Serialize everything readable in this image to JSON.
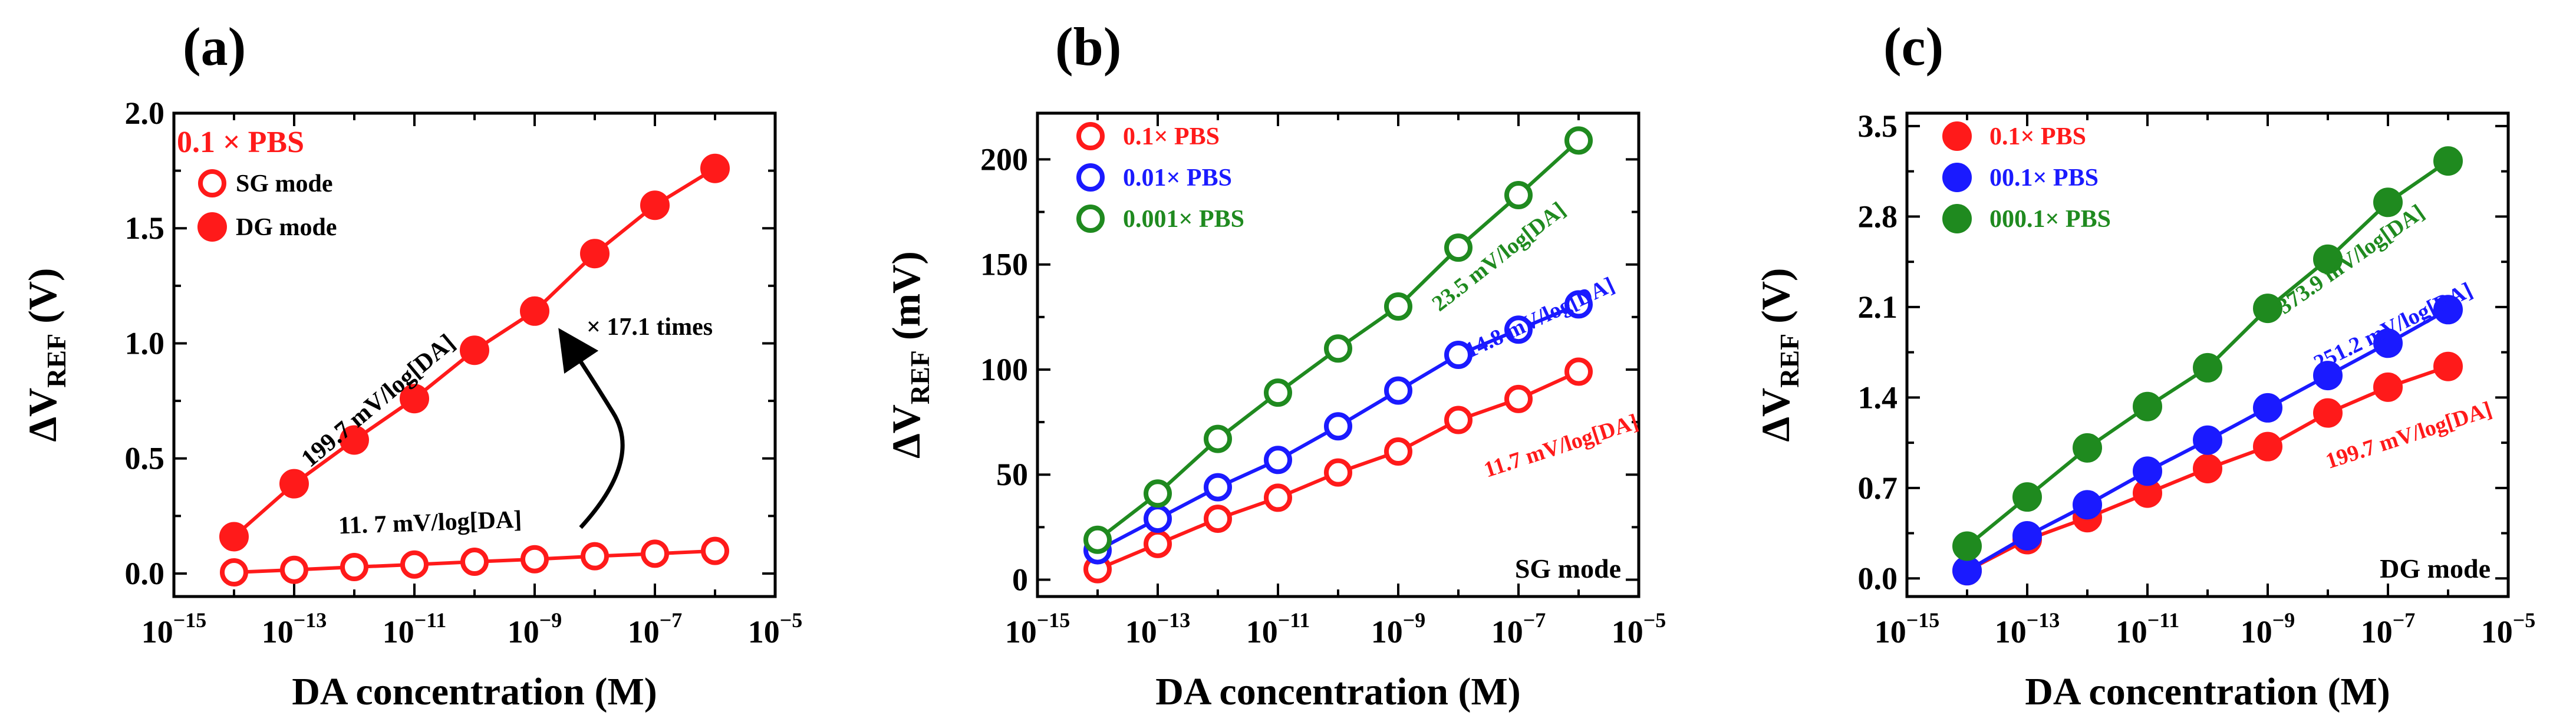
{
  "colors": {
    "red": "#ff1a1a",
    "blue": "#1a1aff",
    "green": "#1f8a1f",
    "axis": "#000000"
  },
  "chart_data": [
    {
      "type": "scatter",
      "panel_label": "(a)",
      "xlabel": "DA concentration (M)",
      "ylabel_main": "ΔV",
      "ylabel_sub": "REF",
      "ylabel_unit": " (V)",
      "xscale": "log",
      "xlim_exp": [
        -15,
        -5
      ],
      "xtick_exps": [
        -15,
        -13,
        -11,
        -9,
        -7,
        -5
      ],
      "ylim": [
        -0.1,
        2.0
      ],
      "yticks": [
        0.0,
        0.5,
        1.0,
        1.5,
        2.0
      ],
      "ytick_labels": [
        "0.0",
        "0.5",
        "1.0",
        "1.5",
        "2.0"
      ],
      "title_text": "0.1 × PBS",
      "legend": [
        {
          "label": "SG mode",
          "color": "#ff1a1a",
          "filled": false
        },
        {
          "label": "DG mode",
          "color": "#ff1a1a",
          "filled": true
        }
      ],
      "x_exp": [
        -14,
        -13,
        -12,
        -11,
        -10,
        -9,
        -8,
        -7,
        -6
      ],
      "series": [
        {
          "name": "SG mode",
          "color": "#ff1a1a",
          "filled": false,
          "values": [
            0.005,
            0.016,
            0.028,
            0.039,
            0.051,
            0.062,
            0.075,
            0.086,
            0.098
          ]
        },
        {
          "name": "DG mode",
          "color": "#ff1a1a",
          "filled": true,
          "values": [
            0.16,
            0.39,
            0.58,
            0.76,
            0.97,
            1.14,
            1.39,
            1.6,
            1.76
          ]
        }
      ],
      "annotations": [
        {
          "text": "199.7 mV/log[DA]",
          "color": "#000000"
        },
        {
          "text": "11. 7 mV/log[DA]",
          "color": "#000000"
        },
        {
          "text": "× 17.1 times",
          "color": "#000000"
        }
      ]
    },
    {
      "type": "scatter",
      "panel_label": "(b)",
      "xlabel": "DA concentration (M)",
      "ylabel_main": "ΔV",
      "ylabel_sub": "REF",
      "ylabel_unit": " (mV)",
      "xscale": "log",
      "xlim_exp": [
        -15,
        -5
      ],
      "xtick_exps": [
        -15,
        -13,
        -11,
        -9,
        -7,
        -5
      ],
      "ylim": [
        -8,
        222
      ],
      "yticks": [
        0,
        50,
        100,
        150,
        200
      ],
      "ytick_labels": [
        "0",
        "50",
        "100",
        "150",
        "200"
      ],
      "mode_label": "SG mode",
      "legend": [
        {
          "label": "0.1× PBS",
          "color": "#ff1a1a",
          "filled": false
        },
        {
          "label": "0.01× PBS",
          "color": "#1a1aff",
          "filled": false
        },
        {
          "label": "0.001× PBS",
          "color": "#1f8a1f",
          "filled": false
        }
      ],
      "x_exp": [
        -14,
        -13,
        -12,
        -11,
        -10,
        -9,
        -8,
        -7,
        -6
      ],
      "series": [
        {
          "name": "0.1× PBS",
          "color": "#ff1a1a",
          "filled": false,
          "values": [
            5,
            17,
            29,
            39,
            51,
            61,
            76,
            86,
            99
          ]
        },
        {
          "name": "0.01× PBS",
          "color": "#1a1aff",
          "filled": false,
          "values": [
            14,
            29,
            44,
            57,
            73,
            90,
            107,
            119,
            131
          ]
        },
        {
          "name": "0.001× PBS",
          "color": "#1f8a1f",
          "filled": false,
          "values": [
            19,
            41,
            67,
            89,
            110,
            130,
            158,
            183,
            209
          ]
        }
      ],
      "annotations": [
        {
          "text": "23.5 mV/log[DA]",
          "color": "#1f8a1f"
        },
        {
          "text": "14.8 mV/log[DA]",
          "color": "#1a1aff"
        },
        {
          "text": "11.7 mV/log[DA]",
          "color": "#ff1a1a"
        }
      ]
    },
    {
      "type": "scatter",
      "panel_label": "(c)",
      "xlabel": "DA concentration (M)",
      "ylabel_main": "ΔV",
      "ylabel_sub": "REF",
      "ylabel_unit": " (V)",
      "xscale": "log",
      "xlim_exp": [
        -15,
        -5
      ],
      "xtick_exps": [
        -15,
        -13,
        -11,
        -9,
        -7,
        -5
      ],
      "ylim": [
        -0.14,
        3.6
      ],
      "yticks": [
        0.0,
        0.7,
        1.4,
        2.1,
        2.8,
        3.5
      ],
      "ytick_labels": [
        "0.0",
        "0.7",
        "1.4",
        "2.1",
        "2.8",
        "3.5"
      ],
      "mode_label": "DG mode",
      "legend": [
        {
          "label": "0.1× PBS",
          "color": "#ff1a1a",
          "filled": true
        },
        {
          "label": "00.1× PBS",
          "color": "#1a1aff",
          "filled": true
        },
        {
          "label": "000.1× PBS",
          "color": "#1f8a1f",
          "filled": true
        }
      ],
      "x_exp": [
        -14,
        -13,
        -12,
        -11,
        -10,
        -9,
        -8,
        -7,
        -6
      ],
      "series": [
        {
          "name": "0.1× PBS",
          "color": "#ff1a1a",
          "filled": true,
          "values": [
            0.06,
            0.3,
            0.47,
            0.66,
            0.85,
            1.02,
            1.28,
            1.48,
            1.64
          ]
        },
        {
          "name": "00.1× PBS",
          "color": "#1a1aff",
          "filled": true,
          "values": [
            0.06,
            0.33,
            0.57,
            0.83,
            1.07,
            1.32,
            1.57,
            1.82,
            2.08
          ]
        },
        {
          "name": "000.1× PBS",
          "color": "#1f8a1f",
          "filled": true,
          "values": [
            0.25,
            0.63,
            1.01,
            1.33,
            1.63,
            2.09,
            2.47,
            2.91,
            3.23
          ]
        }
      ],
      "annotations": [
        {
          "text": "373.9 mV/log[DA]",
          "color": "#1f8a1f"
        },
        {
          "text": "251.2 mV/log[DA]",
          "color": "#1a1aff"
        },
        {
          "text": "199.7 mV/log[DA]",
          "color": "#ff1a1a"
        }
      ]
    }
  ]
}
